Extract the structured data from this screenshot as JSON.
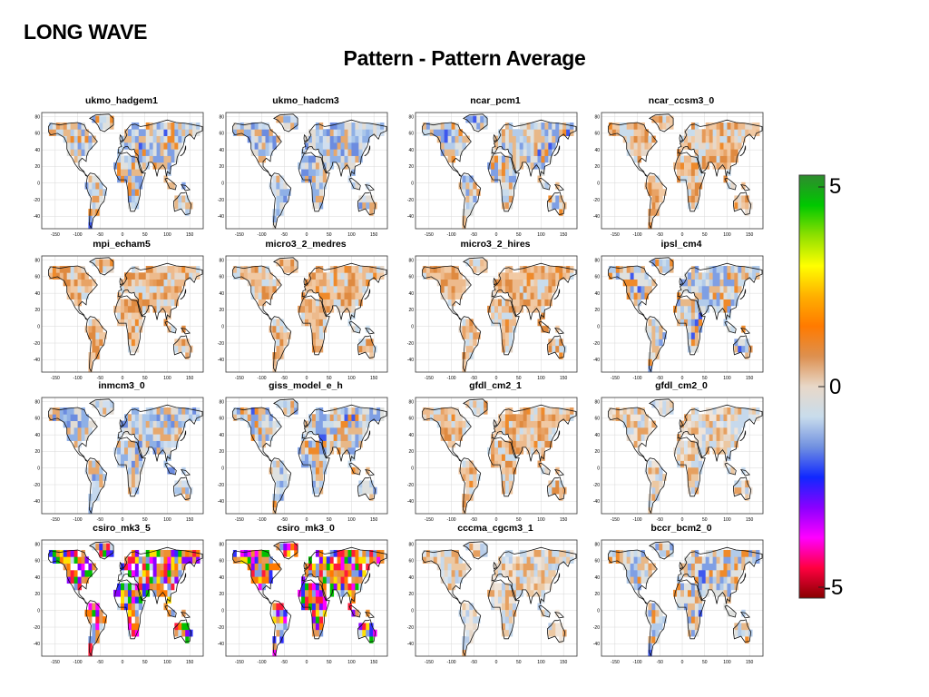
{
  "slide": {
    "title": "LONG WAVE",
    "subtitle": "Pattern - Pattern Average"
  },
  "axes": {
    "x_ticks": [
      "-150",
      "-100",
      "-50",
      "0",
      "50",
      "100",
      "150"
    ],
    "y_ticks": [
      "80",
      "60",
      "40",
      "20",
      "0",
      "-20",
      "-40"
    ]
  },
  "colorbar": {
    "max_label": "5",
    "mid_label": "0",
    "min_label": "-5",
    "colors": [
      "#2e8b2e",
      "#00c800",
      "#8fe000",
      "#ffff00",
      "#ffb000",
      "#ff7a00",
      "#dd9050",
      "#e8d8c8",
      "#c8dcec",
      "#7090e0",
      "#1028ff",
      "#8a00ff",
      "#ff00ff",
      "#ff0040",
      "#880000"
    ]
  },
  "panels": [
    {
      "name": "ukmo_hadgem1",
      "style": "mixed"
    },
    {
      "name": "ukmo_hadcm3",
      "style": "blue"
    },
    {
      "name": "ncar_pcm1",
      "style": "mixed"
    },
    {
      "name": "ncar_ccsm3_0",
      "style": "orange"
    },
    {
      "name": "mpi_echam5",
      "style": "orange"
    },
    {
      "name": "micro3_2_medres",
      "style": "orange"
    },
    {
      "name": "micro3_2_hires",
      "style": "orange"
    },
    {
      "name": "ipsl_cm4",
      "style": "mixed"
    },
    {
      "name": "inmcm3_0",
      "style": "blue"
    },
    {
      "name": "giss_model_e_h",
      "style": "mixed"
    },
    {
      "name": "gfdl_cm2_1",
      "style": "orange"
    },
    {
      "name": "gfdl_cm2_0",
      "style": "light"
    },
    {
      "name": "csiro_mk3_5",
      "style": "noisy"
    },
    {
      "name": "csiro_mk3_0",
      "style": "noisy"
    },
    {
      "name": "cccma_cgcm3_1",
      "style": "light"
    },
    {
      "name": "bccr_bcm2_0",
      "style": "mixed"
    }
  ]
}
